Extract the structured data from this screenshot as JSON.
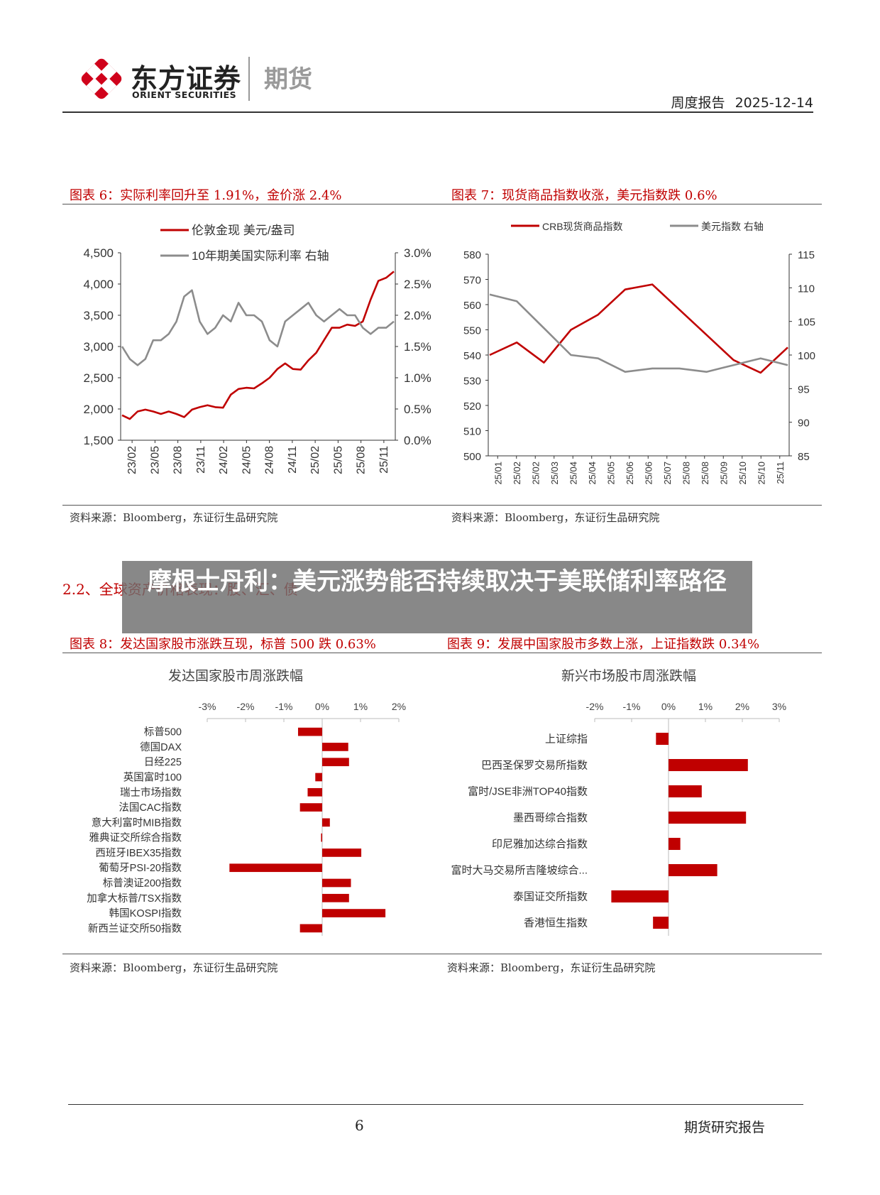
{
  "header": {
    "logo_cn": "东方证券",
    "logo_en": "ORIENT SECURITIES",
    "division": "期货",
    "report_type": "周度报告",
    "date": "2025-12-14"
  },
  "fig6": {
    "title": "图表 6：实际利率回升至 1.91%，金价涨 2.4%",
    "source": "资料来源：Bloomberg，东证衍生品研究院",
    "chart_data": {
      "type": "line",
      "series": [
        {
          "name": "伦敦金现 美元/盎司",
          "color": "#c00000",
          "axis": "left",
          "x": [
            "23/01",
            "23/02",
            "23/03",
            "23/04",
            "23/05",
            "23/06",
            "23/07",
            "23/08",
            "23/09",
            "23/10",
            "23/11",
            "23/12",
            "24/01",
            "24/02",
            "24/03",
            "24/04",
            "24/05",
            "24/06",
            "24/07",
            "24/08",
            "24/09",
            "24/10",
            "24/11",
            "24/12",
            "25/01",
            "25/02",
            "25/03",
            "25/04",
            "25/05",
            "25/06",
            "25/07",
            "25/08",
            "25/09",
            "25/10",
            "25/11",
            "25/12"
          ],
          "values": [
            1900,
            1840,
            1960,
            1990,
            1960,
            1920,
            1960,
            1920,
            1870,
            1990,
            2030,
            2060,
            2030,
            2020,
            2230,
            2320,
            2340,
            2330,
            2410,
            2500,
            2640,
            2730,
            2640,
            2630,
            2780,
            2900,
            3100,
            3300,
            3300,
            3350,
            3330,
            3400,
            3750,
            4050,
            4100,
            4200
          ]
        },
        {
          "name": "10年期美国实际利率 右轴",
          "color": "#8c8c8c",
          "axis": "right",
          "x": [
            "23/01",
            "23/02",
            "23/03",
            "23/04",
            "23/05",
            "23/06",
            "23/07",
            "23/08",
            "23/09",
            "23/10",
            "23/11",
            "23/12",
            "24/01",
            "24/02",
            "24/03",
            "24/04",
            "24/05",
            "24/06",
            "24/07",
            "24/08",
            "24/09",
            "24/10",
            "24/11",
            "24/12",
            "25/01",
            "25/02",
            "25/03",
            "25/04",
            "25/05",
            "25/06",
            "25/07",
            "25/08",
            "25/09",
            "25/10",
            "25/11",
            "25/12"
          ],
          "values": [
            1.5,
            1.3,
            1.2,
            1.3,
            1.6,
            1.6,
            1.7,
            1.9,
            2.3,
            2.4,
            1.9,
            1.7,
            1.8,
            2.0,
            1.9,
            2.2,
            2.0,
            2.0,
            1.9,
            1.6,
            1.5,
            1.9,
            2.0,
            2.1,
            2.2,
            2.0,
            1.9,
            2.0,
            2.1,
            2.0,
            2.0,
            1.8,
            1.7,
            1.8,
            1.8,
            1.9
          ]
        }
      ],
      "left_ticks": [
        "4,500",
        "4,000",
        "3,500",
        "3,000",
        "2,500",
        "2,000",
        "1,500"
      ],
      "left_ylim": [
        1500,
        4500
      ],
      "right_ticks": [
        "3.0%",
        "2.5%",
        "2.0%",
        "1.5%",
        "1.0%",
        "0.5%",
        "0.0%"
      ],
      "right_ylim": [
        0,
        3
      ],
      "x_ticks": [
        "23/02",
        "23/05",
        "23/08",
        "23/11",
        "24/02",
        "24/05",
        "24/08",
        "24/11",
        "25/02",
        "25/05",
        "25/08",
        "25/11"
      ]
    }
  },
  "fig7": {
    "title": "图表 7：现货商品指数收涨，美元指数跌 0.6%",
    "source": "资料来源：Bloomberg，东证衍生品研究院",
    "chart_data": {
      "type": "line",
      "series": [
        {
          "name": "CRB现货商品指数",
          "color": "#c00000",
          "axis": "left",
          "x": [
            "25/01",
            "25/02",
            "25/03",
            "25/04",
            "25/05",
            "25/06",
            "25/07",
            "25/08",
            "25/09",
            "25/10",
            "25/11",
            "25/12"
          ],
          "values": [
            540,
            545,
            537,
            550,
            556,
            566,
            568,
            558,
            548,
            538,
            533,
            543
          ]
        },
        {
          "name": "美元指数 右轴",
          "color": "#8c8c8c",
          "axis": "right",
          "x": [
            "25/01",
            "25/02",
            "25/03",
            "25/04",
            "25/05",
            "25/06",
            "25/07",
            "25/08",
            "25/09",
            "25/10",
            "25/11",
            "25/12"
          ],
          "values": [
            109,
            108,
            104,
            100,
            99.5,
            97.5,
            98,
            98,
            97.5,
            98.5,
            99.5,
            98.5
          ]
        }
      ],
      "left_ticks": [
        "580",
        "570",
        "560",
        "550",
        "540",
        "530",
        "520",
        "510",
        "500"
      ],
      "left_ylim": [
        500,
        580
      ],
      "right_ticks": [
        "115",
        "110",
        "105",
        "100",
        "95",
        "90",
        "85"
      ],
      "right_ylim": [
        85,
        115
      ],
      "x_ticks": [
        "25/01",
        "25/02",
        "25/02",
        "25/03",
        "25/04",
        "25/04",
        "25/05",
        "25/06",
        "25/06",
        "25/07",
        "25/08",
        "25/08",
        "25/09",
        "25/10",
        "25/10",
        "25/11"
      ]
    }
  },
  "section": {
    "heading": "2.2、全球资产价格表现：股、汇、债"
  },
  "overlay": {
    "title": "摩根士丹利：美元涨势能否持续取决于美联储利率路径"
  },
  "fig8": {
    "title": "图表 8：发达国家股市涨跌互现，标普 500 跌 0.63%",
    "source": "资料来源：Bloomberg，东证衍生品研究院",
    "chart_data": {
      "type": "bar",
      "title": "发达国家股市周涨跌幅",
      "orientation": "horizontal",
      "categories": [
        "标普500",
        "德国DAX",
        "日经225",
        "英国富时100",
        "瑞士市场指数",
        "法国CAC指数",
        "意大利富时MIB指数",
        "雅典证交所综合指数",
        "西班牙IBEX35指数",
        "葡萄牙PSI-20指数",
        "标普澳证200指数",
        "加拿大标普/TSX指数",
        "韩国KOSPI指数",
        "新西兰证交所50指数"
      ],
      "values": [
        -0.63,
        0.68,
        0.7,
        -0.18,
        -0.38,
        -0.58,
        0.2,
        -0.03,
        1.02,
        -2.42,
        0.75,
        0.7,
        1.65,
        -0.58
      ],
      "x_ticks": [
        "-3%",
        "-2%",
        "-1%",
        "0%",
        "1%",
        "2%"
      ],
      "xlim": [
        -3,
        2
      ],
      "color": "#c00000"
    }
  },
  "fig9": {
    "title": "图表 9：发展中国家股市多数上涨，上证指数跌 0.34%",
    "source": "资料来源：Bloomberg，东证衍生品研究院",
    "chart_data": {
      "type": "bar",
      "title": "新兴市场股市周涨跌幅",
      "orientation": "horizontal",
      "categories": [
        "上证综指",
        "巴西圣保罗交易所指数",
        "富时/JSE非洲TOP40指数",
        "墨西哥综合指数",
        "印尼雅加达综合指数",
        "富时大马交易所吉隆坡综合...",
        "泰国证交所指数",
        "香港恒生指数"
      ],
      "values": [
        -0.34,
        2.15,
        0.9,
        2.1,
        0.32,
        1.32,
        -1.55,
        -0.42
      ],
      "x_ticks": [
        "-2%",
        "-1%",
        "0%",
        "1%",
        "2%",
        "3%"
      ],
      "xlim": [
        -2,
        3
      ],
      "color": "#c00000"
    }
  },
  "footer": {
    "page": "6",
    "label": "期货研究报告"
  }
}
